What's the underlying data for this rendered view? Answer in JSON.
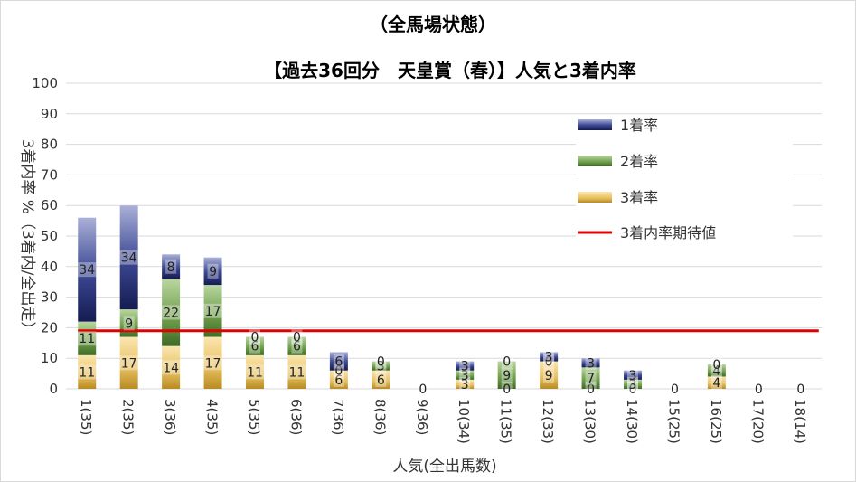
{
  "chart_data": {
    "type": "bar",
    "stacked": true,
    "title": "（全馬場状態）",
    "subtitle": "【過去36回分　天皇賞（春）】人気と3着内率",
    "xlabel": "人気(全出馬数)",
    "ylabel": "3着内率 %（3着内/全出走）",
    "ylim": [
      0,
      100
    ],
    "yticks": [
      "0",
      "10",
      "20",
      "30",
      "40",
      "50",
      "60",
      "70",
      "80",
      "90",
      "100"
    ],
    "grid": true,
    "legend_position": "right",
    "categories": [
      "1(35)",
      "2(35)",
      "3(36)",
      "4(35)",
      "5(35)",
      "6(36)",
      "7(36)",
      "8(36)",
      "9(36)",
      "10(34)",
      "11(35)",
      "12(33)",
      "13(30)",
      "14(30)",
      "15(25)",
      "16(25)",
      "17(20)",
      "18(14)"
    ],
    "series": [
      {
        "name": "3着率",
        "color": "#c9a227",
        "values": [
          11,
          17,
          14,
          17,
          11,
          11,
          6,
          6,
          0,
          3,
          0,
          9,
          0,
          0,
          0,
          4,
          0,
          0
        ],
        "labels": [
          "11",
          "17",
          "14",
          "17",
          "11",
          "11",
          "6",
          "6",
          "0",
          "3",
          "0",
          "9",
          "0",
          "0",
          "0",
          "4",
          "0",
          "0"
        ]
      },
      {
        "name": "2着率",
        "color": "#6a9b45",
        "values": [
          11,
          9,
          22,
          17,
          6,
          6,
          0,
          3,
          0,
          3,
          9,
          0,
          7,
          3,
          0,
          4,
          0,
          0
        ],
        "labels": [
          "11",
          "9",
          "22",
          "17",
          "6",
          "6",
          "0",
          "3",
          "",
          "3",
          "9",
          "0",
          "7",
          "3",
          "",
          "4",
          "",
          ""
        ]
      },
      {
        "name": "1着率",
        "color": "#2e3a80",
        "values": [
          34,
          34,
          8,
          9,
          0,
          0,
          6,
          0,
          0,
          3,
          0,
          3,
          3,
          3,
          0,
          0,
          0,
          0
        ],
        "labels": [
          "34",
          "34",
          "8",
          "9",
          "0",
          "0",
          "6",
          "0",
          "",
          "3",
          "0",
          "3",
          "3",
          "3",
          "",
          "0",
          "",
          ""
        ]
      }
    ],
    "reference_line": {
      "name": "3着内率期待値",
      "value": 19,
      "color": "#e00000"
    }
  }
}
